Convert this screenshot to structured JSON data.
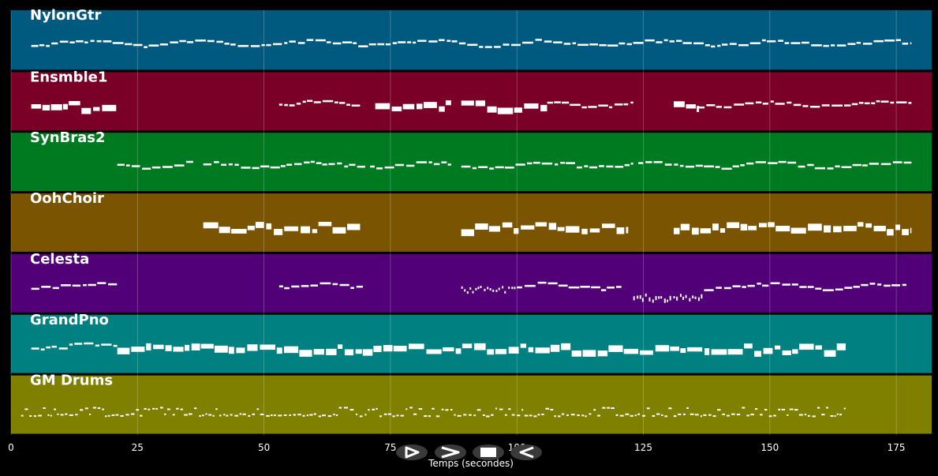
{
  "chart_data": {
    "type": "piano-roll",
    "xlabel": "Temps (secondes)",
    "xlim": [
      0,
      182
    ],
    "xticks": [
      0,
      25,
      50,
      75,
      100,
      125,
      150,
      175
    ],
    "xtick_labels": [
      "0",
      "25",
      "50",
      "75",
      "100",
      "125",
      "150",
      "175"
    ],
    "grid": true,
    "tracks": [
      {
        "name": "NylonGtr",
        "color": "#005a80",
        "segments": [
          {
            "start": 4,
            "end": 178,
            "style": "line"
          }
        ]
      },
      {
        "name": "Ensmble1",
        "color": "#7a0028",
        "segments": [
          {
            "start": 4,
            "end": 21,
            "style": "block"
          },
          {
            "start": 53,
            "end": 69,
            "style": "line"
          },
          {
            "start": 72,
            "end": 87,
            "style": "block"
          },
          {
            "start": 89,
            "end": 106,
            "style": "block"
          },
          {
            "start": 106,
            "end": 123,
            "style": "line"
          },
          {
            "start": 131,
            "end": 136,
            "style": "block"
          },
          {
            "start": 136,
            "end": 178,
            "style": "line"
          }
        ]
      },
      {
        "name": "SynBras2",
        "color": "#007a20",
        "segments": [
          {
            "start": 21,
            "end": 36,
            "style": "line"
          },
          {
            "start": 38,
            "end": 70,
            "style": "line"
          },
          {
            "start": 71,
            "end": 87,
            "style": "line"
          },
          {
            "start": 89,
            "end": 123,
            "style": "line"
          },
          {
            "start": 124,
            "end": 178,
            "style": "line"
          }
        ]
      },
      {
        "name": "OohChoir",
        "color": "#7a5400",
        "segments": [
          {
            "start": 38,
            "end": 69,
            "style": "block"
          },
          {
            "start": 89,
            "end": 122,
            "style": "block"
          },
          {
            "start": 131,
            "end": 178,
            "style": "block"
          }
        ]
      },
      {
        "name": "Celesta",
        "color": "#520078",
        "segments": [
          {
            "start": 4,
            "end": 21,
            "style": "line"
          },
          {
            "start": 53,
            "end": 70,
            "style": "line"
          },
          {
            "start": 89,
            "end": 100,
            "style": "dots"
          },
          {
            "start": 100,
            "end": 121,
            "style": "line"
          },
          {
            "start": 123,
            "end": 137,
            "style": "dots-low"
          },
          {
            "start": 137,
            "end": 168,
            "style": "line"
          },
          {
            "start": 168,
            "end": 177,
            "style": "line"
          }
        ]
      },
      {
        "name": "GrandPno",
        "color": "#008080",
        "segments": [
          {
            "start": 4,
            "end": 21,
            "style": "line"
          },
          {
            "start": 21,
            "end": 165,
            "style": "block"
          }
        ]
      },
      {
        "name": "GM Drums",
        "color": "#808000",
        "segments": [
          {
            "start": 2,
            "end": 165,
            "style": "drums"
          }
        ]
      }
    ]
  },
  "controls": [
    {
      "name": "play-button",
      "icon": "play-icon"
    },
    {
      "name": "next-button",
      "icon": "chevron-right-icon"
    },
    {
      "name": "stop-button",
      "icon": "stop-icon"
    },
    {
      "name": "prev-button",
      "icon": "chevron-left-icon"
    }
  ]
}
